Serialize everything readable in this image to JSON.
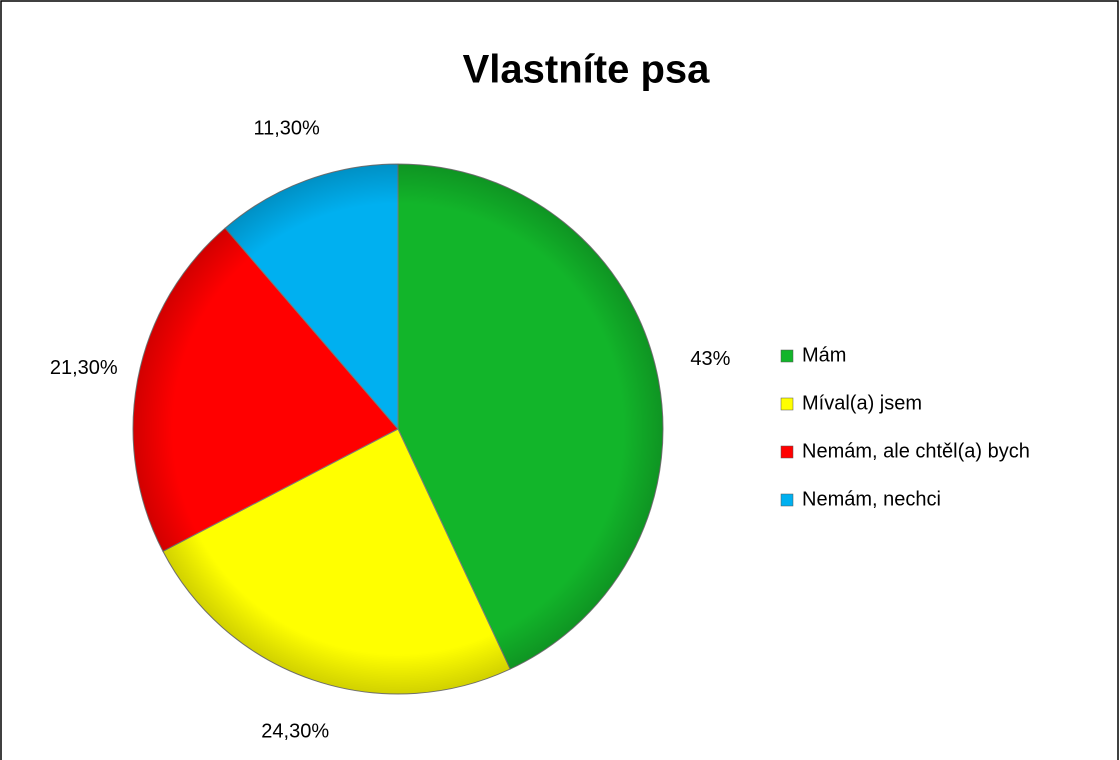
{
  "chart_data": {
    "type": "pie",
    "title": "Vlastníte psa",
    "categories": [
      "Mám",
      "Míval(a) jsem",
      "Nemám, ale chtěl(a) bych",
      "Nemám, nechci"
    ],
    "values": [
      43,
      24.3,
      21.3,
      11.3
    ],
    "value_labels": [
      "43%",
      "24,30%",
      "21,30%",
      "11,30%"
    ],
    "colors": [
      "#12b52a",
      "#ffff00",
      "#ff0000",
      "#00b0f0"
    ],
    "legend": "right"
  }
}
